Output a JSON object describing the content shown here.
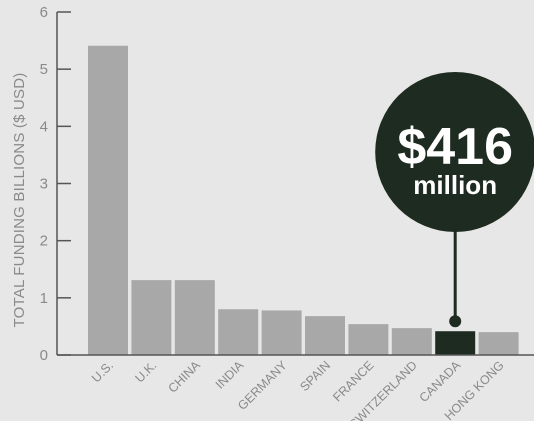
{
  "chart_data": {
    "type": "bar",
    "ylabel": "TOTAL FUNDING BILLIONS ($ USD)",
    "xlabel": "",
    "ylim": [
      0,
      6
    ],
    "yticks": [
      "0",
      "1",
      "2",
      "3",
      "4",
      "5",
      "6"
    ],
    "categories": [
      "U.S.",
      "U.K.",
      "CHINA",
      "INDIA",
      "GERMANY",
      "SPAIN",
      "FRANCE",
      "SWITZERLAND",
      "CANADA",
      "HONG KONG"
    ],
    "values": [
      5.41,
      1.31,
      1.31,
      0.8,
      0.78,
      0.68,
      0.54,
      0.47,
      0.416,
      0.4
    ],
    "highlight": {
      "category": "CANADA",
      "value_text": "$416",
      "unit_text": "million"
    },
    "grid": false,
    "colors": {
      "background": "#e7e7e7",
      "bar": "#a8a8a8",
      "highlight": "#1e2b21",
      "axis": "#555555",
      "text": "#8a8a8a"
    }
  }
}
